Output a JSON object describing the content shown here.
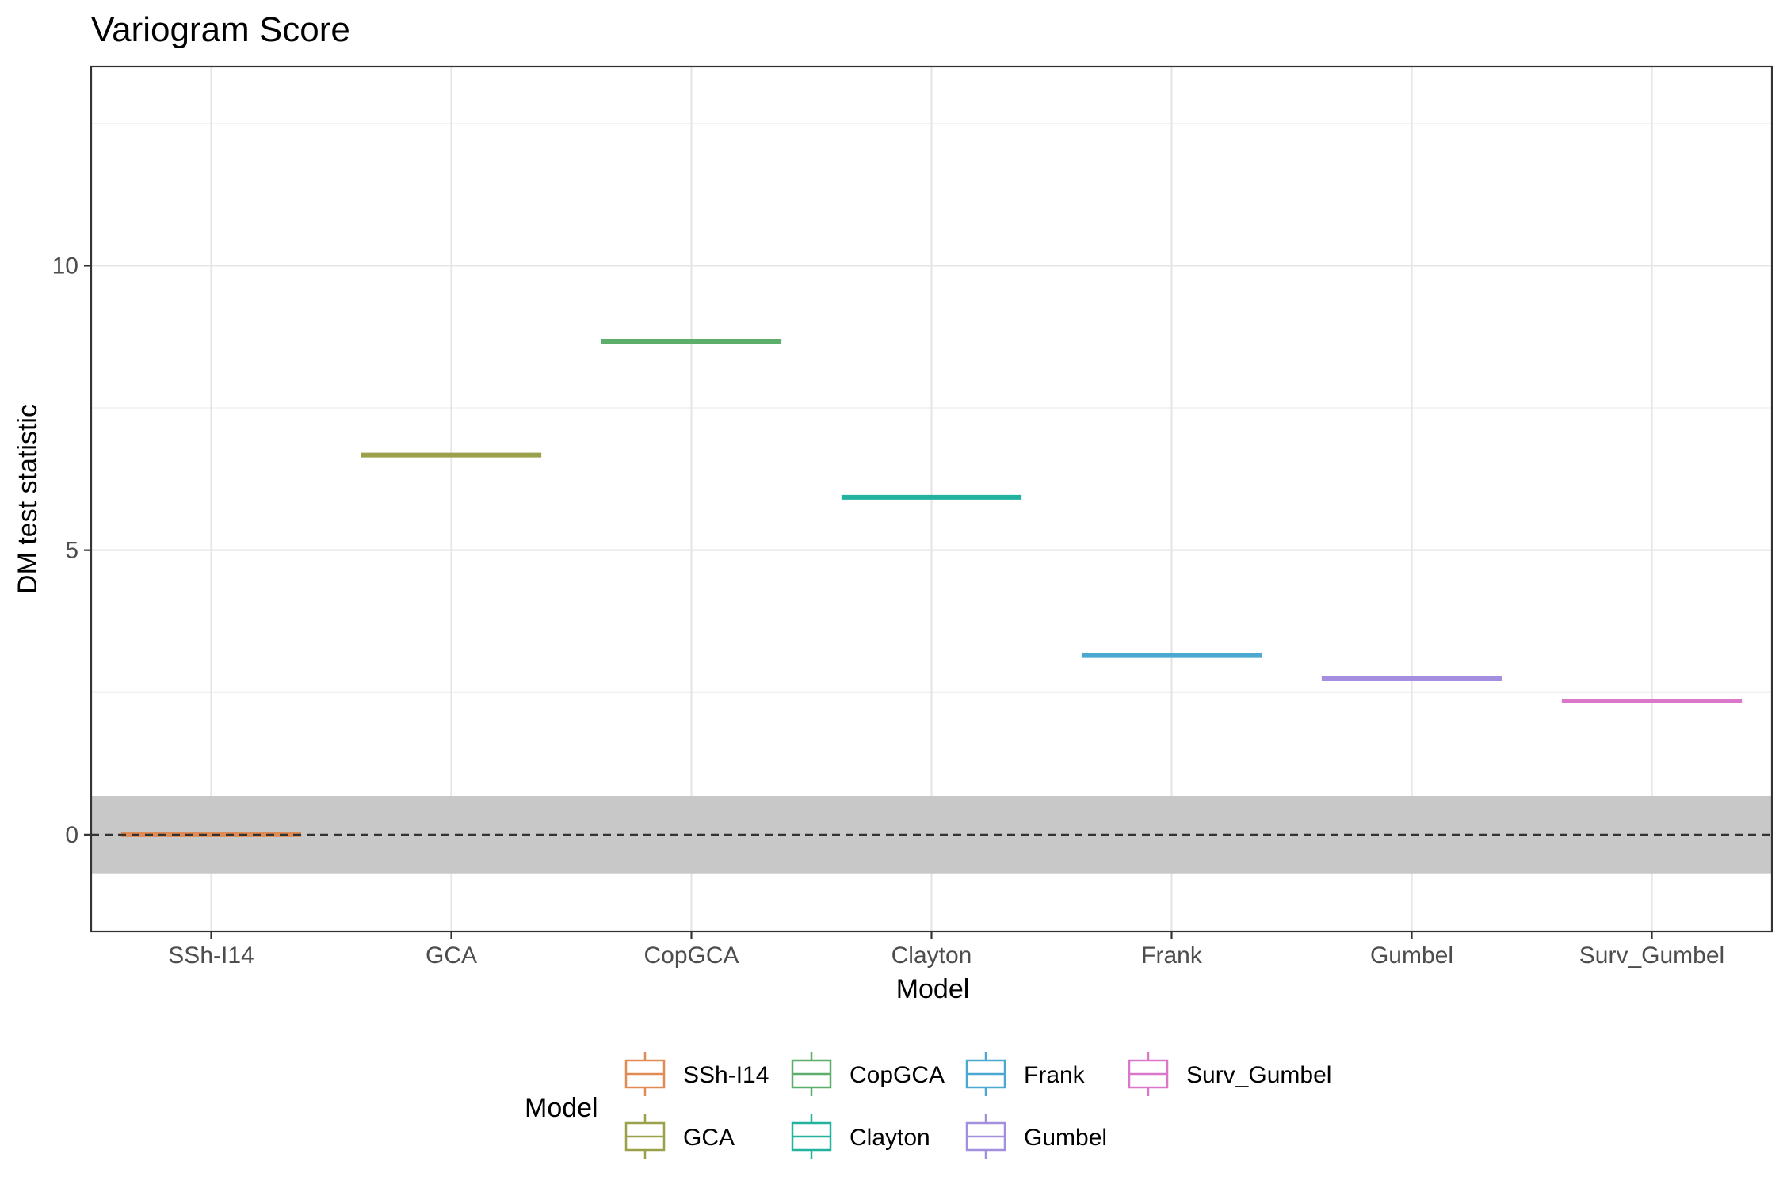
{
  "chart_data": {
    "type": "box",
    "title": "Variogram Score",
    "xlabel": "Model",
    "ylabel": "DM test statistic",
    "categories": [
      "SSh-I14",
      "GCA",
      "CopGCA",
      "Clayton",
      "Frank",
      "Gumbel",
      "Surv_Gumbel"
    ],
    "values": [
      0.0,
      6.67,
      8.67,
      5.93,
      3.15,
      2.74,
      2.35
    ],
    "colors": [
      "#E08B53",
      "#9AA14A",
      "#5DAE6A",
      "#23B29E",
      "#4BA8D1",
      "#A38FDD",
      "#DB77C9"
    ],
    "ylim": [
      -1.7,
      13.5
    ],
    "yticks": [
      0,
      5,
      10
    ],
    "reference_line": 0,
    "band": [
      -0.68,
      0.68
    ],
    "grid": true,
    "legend": {
      "title": "Model",
      "position": "bottom",
      "order": [
        "SSh-I14",
        "GCA",
        "CopGCA",
        "Clayton",
        "Frank",
        "Gumbel",
        "Surv_Gumbel"
      ]
    }
  }
}
